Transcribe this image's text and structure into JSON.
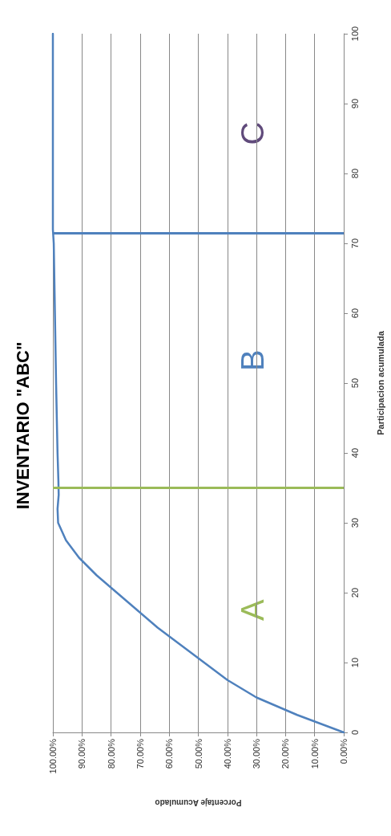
{
  "chart_data": {
    "type": "line",
    "title": "INVENTARIO \"ABC\"",
    "xlabel": "Porcentaje Acumulado",
    "ylabel": "Participacion acumulada",
    "x": [
      0,
      16,
      30,
      40,
      48,
      56,
      64,
      71,
      78,
      85,
      91,
      95.5,
      98.2,
      98.4,
      98,
      98.1,
      98.4,
      98.9,
      99.3,
      99.7,
      100,
      100,
      100,
      100
    ],
    "series": [
      {
        "color": "#4f81bd",
        "values": [
          0,
          2.5,
          5,
          7.5,
          10,
          12.5,
          15,
          17.5,
          20,
          22.5,
          25,
          27.5,
          30,
          32,
          34,
          36,
          40,
          50,
          60,
          70,
          72,
          80,
          90,
          100
        ]
      }
    ],
    "ylim": [
      0,
      100
    ],
    "yticks": [
      0,
      10,
      20,
      30,
      40,
      50,
      60,
      70,
      80,
      90,
      100
    ],
    "xlim": [
      100,
      0
    ],
    "xticks": [
      {
        "value": 0,
        "label": "0.00%"
      },
      {
        "value": 10,
        "label": "10.00%"
      },
      {
        "value": 20,
        "label": "20.00%"
      },
      {
        "value": 30,
        "label": "30.00%"
      },
      {
        "value": 40,
        "label": "40.00%"
      },
      {
        "value": 50,
        "label": "50.00%"
      },
      {
        "value": 60,
        "label": "60.00%"
      },
      {
        "value": 70,
        "label": "70.00%"
      },
      {
        "value": 80,
        "label": "80.00%"
      },
      {
        "value": 90,
        "label": "90.00%"
      },
      {
        "value": 100,
        "label": "100.00%"
      }
    ],
    "grid": "x",
    "marker": "none",
    "line_style": "solid",
    "ref_lines": [
      {
        "axis": "y",
        "value": 35,
        "color": "#9bbb59"
      },
      {
        "axis": "y",
        "value": 71.5,
        "color": "#4f81bd"
      }
    ],
    "annotations": [
      "A",
      "B",
      "C"
    ]
  }
}
